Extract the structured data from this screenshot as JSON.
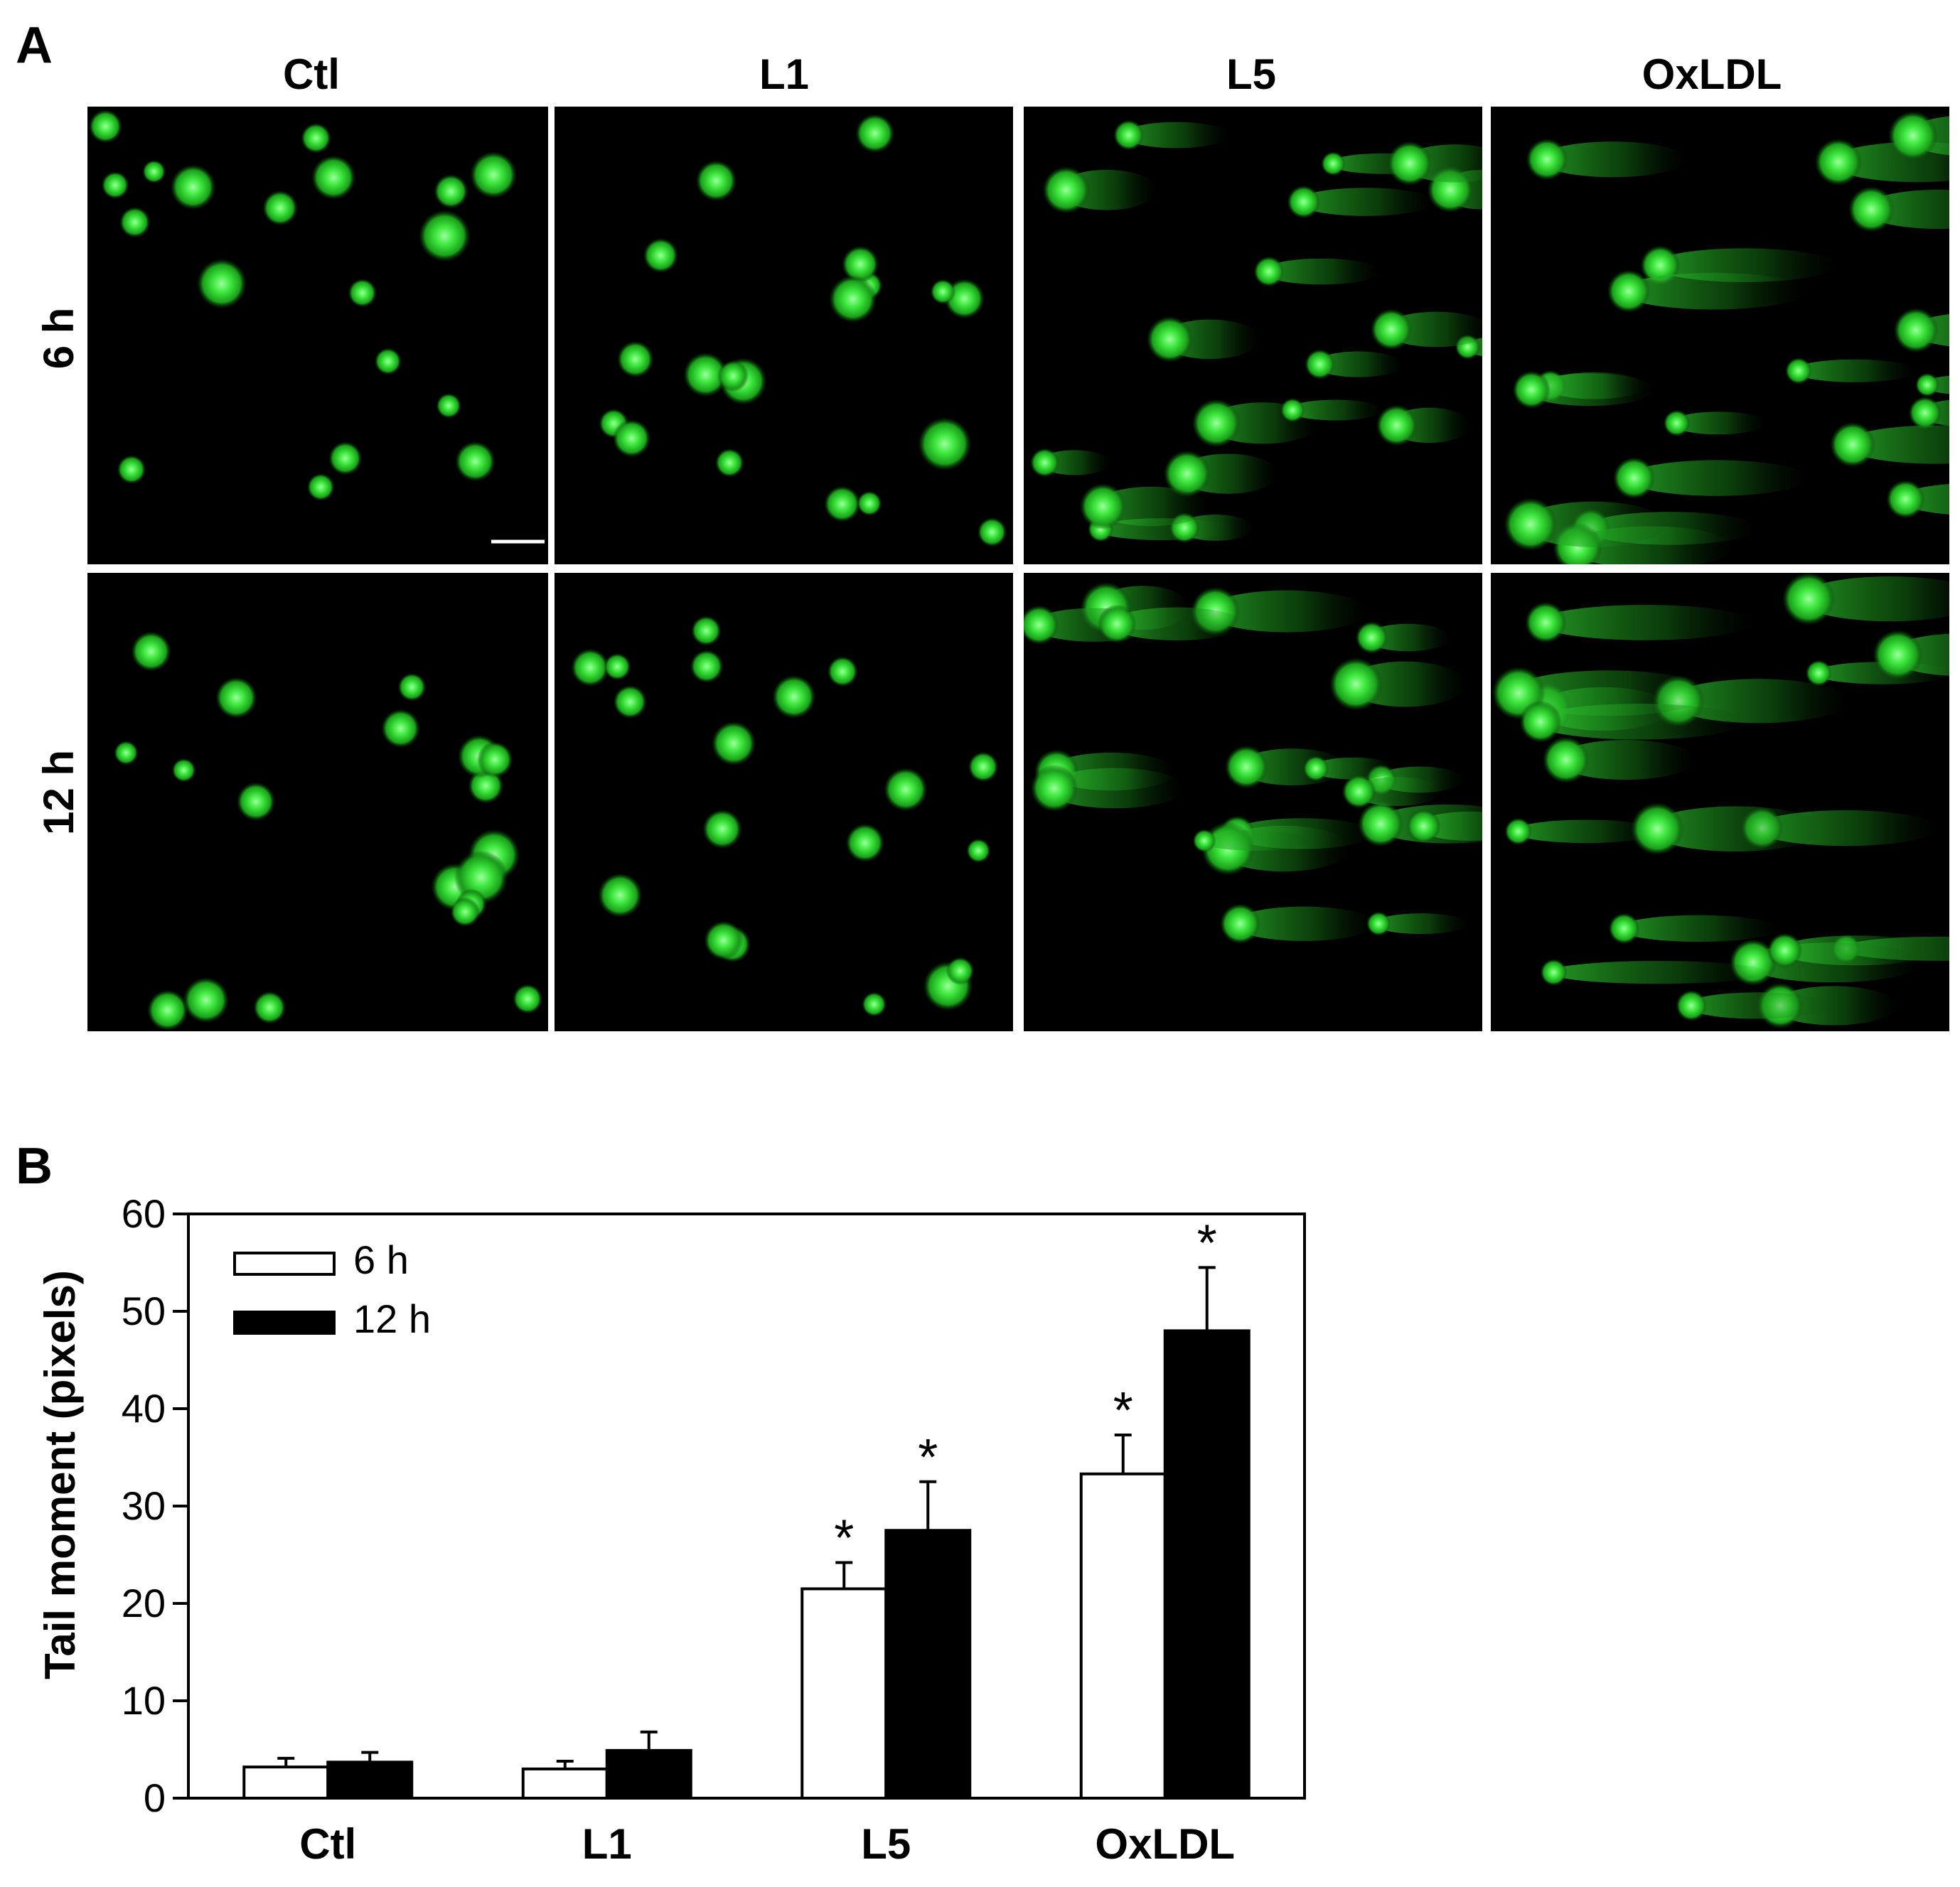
{
  "panel_a": {
    "letter": "A",
    "columns": [
      "Ctl",
      "L1",
      "L5",
      "OxLDL"
    ],
    "rows": [
      "6 h",
      "12 h"
    ]
  },
  "panel_b": {
    "letter": "B"
  },
  "chart_data": {
    "type": "bar",
    "categories": [
      "Ctl",
      "L1",
      "L5",
      "OxLDL"
    ],
    "series": [
      {
        "name": "6 h",
        "values": [
          3.2,
          3.0,
          21.5,
          33.3
        ],
        "errors": [
          0.9,
          0.8,
          2.7,
          4.0
        ],
        "significant": [
          false,
          false,
          true,
          true
        ],
        "color": "#ffffff"
      },
      {
        "name": "12 h",
        "values": [
          3.7,
          4.9,
          27.5,
          48.0
        ],
        "errors": [
          1.0,
          1.9,
          5.0,
          6.5
        ],
        "significant": [
          false,
          false,
          true,
          true
        ],
        "color": "#000000"
      }
    ],
    "ylabel": "Tail moment (pixels)",
    "xlabel": "",
    "ylim": [
      0,
      60
    ],
    "yticks": [
      0,
      10,
      20,
      30,
      40,
      50,
      60
    ],
    "significance_marker": "*",
    "legend_position": "top-left"
  }
}
